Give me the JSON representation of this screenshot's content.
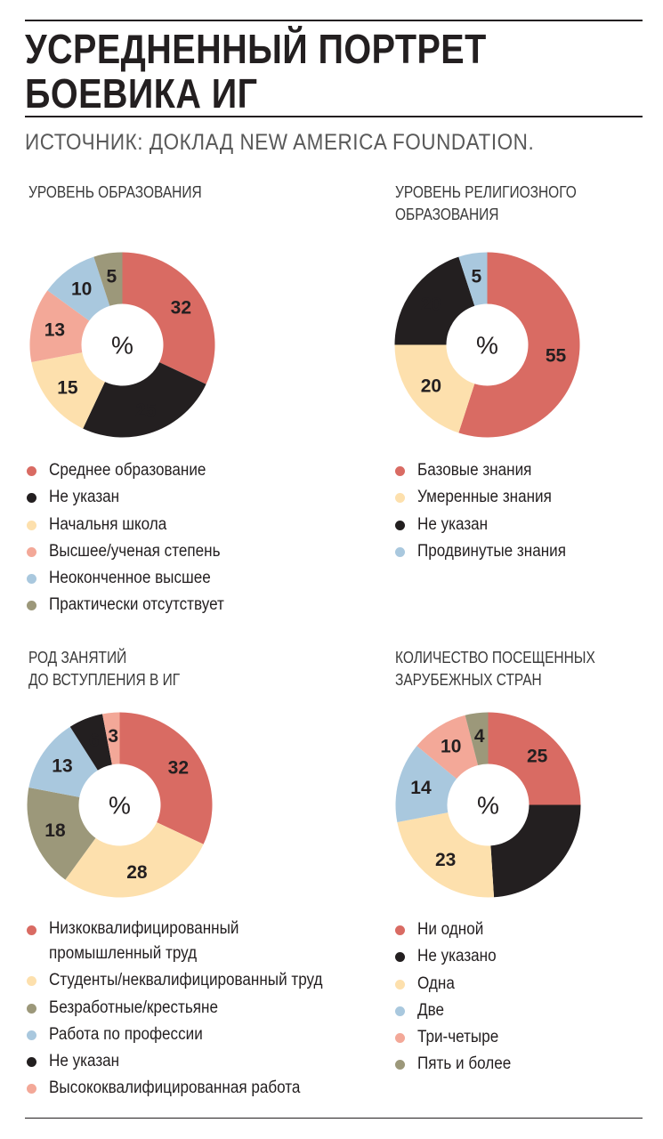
{
  "header": {
    "title": "УСРЕДНЕННЫЙ ПОРТРЕТ БОЕВИКА ИГ",
    "source": "ИСТОЧНИК: ДОКЛАД NEW AMERICA FOUNDATION."
  },
  "colors": {
    "red": "#d96b63",
    "black": "#231f20",
    "cream": "#fde0ad",
    "salmon": "#f3a898",
    "blue": "#a9c8de",
    "olive": "#9c987a"
  },
  "chart_data": [
    {
      "type": "pie",
      "title": "УРОВЕНЬ ОБРАЗОВАНИЯ",
      "center_label": "%",
      "slices": [
        {
          "label": "Среднее образование",
          "value": 32,
          "color": "#d96b63"
        },
        {
          "label": "Не указан",
          "value": 25,
          "color": "#231f20"
        },
        {
          "label": "Начальня школа",
          "value": 15,
          "color": "#fde0ad"
        },
        {
          "label": "Высшее/ученая степень",
          "value": 13,
          "color": "#f3a898"
        },
        {
          "label": "Неоконченное высшее",
          "value": 10,
          "color": "#a9c8de"
        },
        {
          "label": "Практически отсутствует",
          "value": 5,
          "color": "#9c987a"
        }
      ]
    },
    {
      "type": "pie",
      "title": "УРОВЕНЬ РЕЛИГИОЗНОГО\nОБРАЗОВАНИЯ",
      "center_label": "%",
      "slices": [
        {
          "label": "Базовые знания",
          "value": 55,
          "color": "#d96b63"
        },
        {
          "label": "Умеренные знания",
          "value": 20,
          "color": "#fde0ad"
        },
        {
          "label": "Не указан",
          "value": 20,
          "color": "#231f20"
        },
        {
          "label": "Продвинутые знания",
          "value": 5,
          "color": "#a9c8de"
        }
      ]
    },
    {
      "type": "pie",
      "title": "РОД ЗАНЯТИЙ\nДО ВСТУПЛЕНИЯ  В ИГ",
      "center_label": "%",
      "slices": [
        {
          "label": "Низкоквалифицированный\nпромышленный труд",
          "value": 32,
          "color": "#d96b63"
        },
        {
          "label": "Студенты/неквалифицированный труд",
          "value": 28,
          "color": "#fde0ad"
        },
        {
          "label": "Безработные/крестьяне",
          "value": 18,
          "color": "#9c987a"
        },
        {
          "label": "Работа по профессии",
          "value": 13,
          "color": "#a9c8de"
        },
        {
          "label": "Не указан",
          "value": 6,
          "color": "#231f20"
        },
        {
          "label": "Высококвалифицированная работа",
          "value": 3,
          "color": "#f3a898"
        }
      ]
    },
    {
      "type": "pie",
      "title": "КОЛИЧЕСТВО ПОСЕЩЕННЫХ\nЗАРУБЕЖНЫХ СТРАН",
      "center_label": "%",
      "slices": [
        {
          "label": "Ни одной",
          "value": 25,
          "color": "#d96b63"
        },
        {
          "label": "Не указано",
          "value": 24,
          "color": "#231f20"
        },
        {
          "label": "Одна",
          "value": 23,
          "color": "#fde0ad"
        },
        {
          "label": "Две",
          "value": 14,
          "color": "#a9c8de"
        },
        {
          "label": "Три-четыре",
          "value": 10,
          "color": "#f3a898"
        },
        {
          "label": "Пять и более",
          "value": 4,
          "color": "#9c987a"
        }
      ],
      "unlabeled_slices": [
        "Не указано"
      ]
    }
  ]
}
